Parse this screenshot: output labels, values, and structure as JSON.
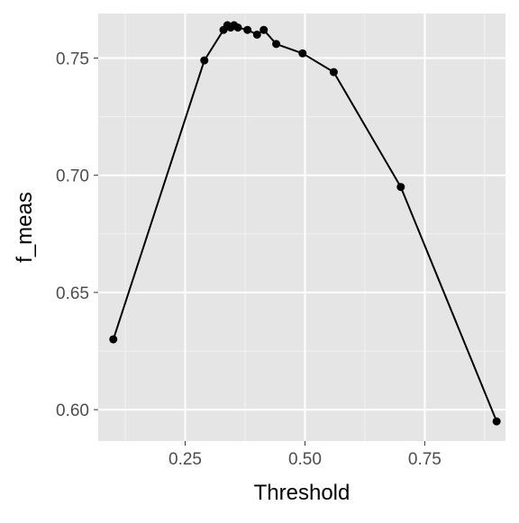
{
  "chart_data": {
    "type": "line",
    "title": "",
    "xlabel": "Threshold",
    "ylabel": "f_meas",
    "xlim": [
      0.0685,
      0.9185
    ],
    "ylim": [
      0.5866,
      0.769
    ],
    "x_ticks": [
      0.25,
      0.5,
      0.75
    ],
    "x_tick_labels": [
      "0.25",
      "0.50",
      "0.75"
    ],
    "y_ticks": [
      0.6,
      0.65,
      0.7,
      0.75
    ],
    "y_tick_labels": [
      "0.60",
      "0.65",
      "0.70",
      "0.75"
    ],
    "grid": true,
    "legend": "none",
    "series": [
      {
        "x": [
          0.1,
          0.29,
          0.33,
          0.338,
          0.345,
          0.352,
          0.36,
          0.38,
          0.4,
          0.414,
          0.44,
          0.495,
          0.56,
          0.7,
          0.9
        ],
        "y": [
          0.63,
          0.749,
          0.762,
          0.764,
          0.763,
          0.764,
          0.763,
          0.762,
          0.76,
          0.762,
          0.756,
          0.752,
          0.744,
          0.695,
          0.595
        ]
      }
    ],
    "colors": {
      "panel_background": "#e5e5e5",
      "grid_major": "#ffffff",
      "grid_minor": "#f2f2f2",
      "line": "#000000",
      "points": "#000000"
    }
  }
}
